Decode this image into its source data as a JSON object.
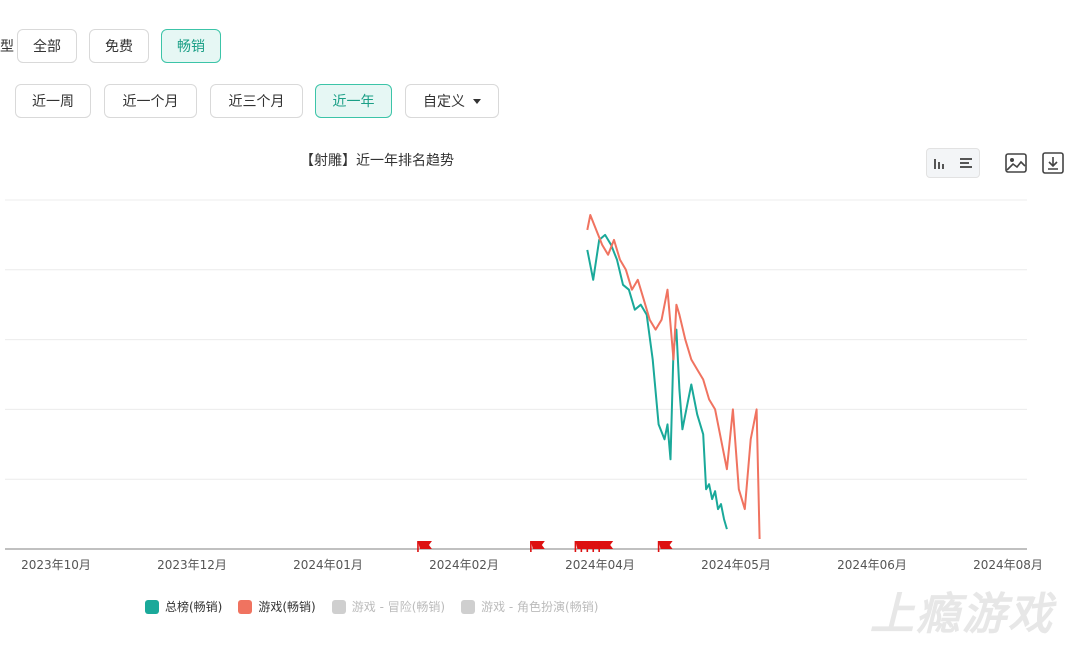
{
  "filters": {
    "edge_label": "型",
    "list_type": [
      "全部",
      "免费",
      "畅销"
    ],
    "list_type_active": 2,
    "time_range": [
      "近一周",
      "近一个月",
      "近三个月",
      "近一年"
    ],
    "time_range_active": 3,
    "custom_label": "自定义"
  },
  "chart_title": "【射雕】近一年排名趋势",
  "watermark": "上瘾游戏",
  "colors": {
    "total": "#1aa99a",
    "game": "#f07360",
    "inactive": "#cfcfcf",
    "flag": "#dd1111",
    "active_accent": "#3cc4a8"
  },
  "chart_data": {
    "type": "line",
    "x_axis": {
      "type": "date",
      "range": [
        "2023-09-01",
        "2024-08-10"
      ],
      "tick_labels": [
        "2023年10月",
        "2023年12月",
        "2024年01月",
        "2024年02月",
        "2024年04月",
        "2024年05月",
        "2024年06月",
        "2024年08月"
      ]
    },
    "y_axis": {
      "tick_labels_visible": false,
      "gridlines": 5
    },
    "grid": true,
    "legend_position": "bottom",
    "series": [
      {
        "name": "总榜(畅销)",
        "color": "#1aa99a",
        "active": true,
        "points": [
          [
            "2024-03-15",
            50
          ],
          [
            "2024-03-17",
            80
          ],
          [
            "2024-03-19",
            40
          ],
          [
            "2024-03-21",
            35
          ],
          [
            "2024-03-23",
            45
          ],
          [
            "2024-03-25",
            60
          ],
          [
            "2024-03-27",
            85
          ],
          [
            "2024-03-29",
            90
          ],
          [
            "2024-03-31",
            110
          ],
          [
            "2024-04-02",
            105
          ],
          [
            "2024-04-04",
            115
          ],
          [
            "2024-04-06",
            160
          ],
          [
            "2024-04-08",
            225
          ],
          [
            "2024-04-10",
            240
          ],
          [
            "2024-04-11",
            225
          ],
          [
            "2024-04-12",
            260
          ],
          [
            "2024-04-13",
            150
          ],
          [
            "2024-04-14",
            130
          ],
          [
            "2024-04-15",
            190
          ],
          [
            "2024-04-16",
            230
          ],
          [
            "2024-04-18",
            200
          ],
          [
            "2024-04-19",
            185
          ],
          [
            "2024-04-21",
            215
          ],
          [
            "2024-04-23",
            235
          ],
          [
            "2024-04-24",
            290
          ],
          [
            "2024-04-25",
            285
          ],
          [
            "2024-04-26",
            300
          ],
          [
            "2024-04-27",
            292
          ],
          [
            "2024-04-28",
            310
          ],
          [
            "2024-04-29",
            305
          ],
          [
            "2024-04-30",
            320
          ],
          [
            "2024-05-01",
            330
          ]
        ]
      },
      {
        "name": "游戏(畅销)",
        "color": "#f07360",
        "active": true,
        "points": [
          [
            "2024-03-15",
            30
          ],
          [
            "2024-03-16",
            15
          ],
          [
            "2024-03-18",
            30
          ],
          [
            "2024-03-20",
            45
          ],
          [
            "2024-03-22",
            55
          ],
          [
            "2024-03-24",
            40
          ],
          [
            "2024-03-26",
            60
          ],
          [
            "2024-03-28",
            70
          ],
          [
            "2024-03-30",
            90
          ],
          [
            "2024-04-01",
            80
          ],
          [
            "2024-04-03",
            100
          ],
          [
            "2024-04-05",
            120
          ],
          [
            "2024-04-07",
            130
          ],
          [
            "2024-04-09",
            120
          ],
          [
            "2024-04-11",
            90
          ],
          [
            "2024-04-13",
            160
          ],
          [
            "2024-04-14",
            105
          ],
          [
            "2024-04-15",
            115
          ],
          [
            "2024-04-17",
            140
          ],
          [
            "2024-04-19",
            160
          ],
          [
            "2024-04-21",
            170
          ],
          [
            "2024-04-23",
            180
          ],
          [
            "2024-04-25",
            200
          ],
          [
            "2024-04-27",
            210
          ],
          [
            "2024-04-29",
            240
          ],
          [
            "2024-05-01",
            270
          ],
          [
            "2024-05-03",
            210
          ],
          [
            "2024-05-05",
            290
          ],
          [
            "2024-05-07",
            310
          ],
          [
            "2024-05-09",
            240
          ],
          [
            "2024-05-11",
            210
          ],
          [
            "2024-05-12",
            340
          ]
        ]
      },
      {
        "name": "游戏 - 冒险(畅销)",
        "color": "#cfcfcf",
        "active": false,
        "points": []
      },
      {
        "name": "游戏 - 角色扮演(畅销)",
        "color": "#cfcfcf",
        "active": false,
        "points": []
      }
    ],
    "event_markers": [
      "2024-01-18",
      "2024-02-25",
      "2024-03-11",
      "2024-03-13",
      "2024-03-15",
      "2024-03-17",
      "2024-03-19",
      "2024-04-08"
    ]
  }
}
